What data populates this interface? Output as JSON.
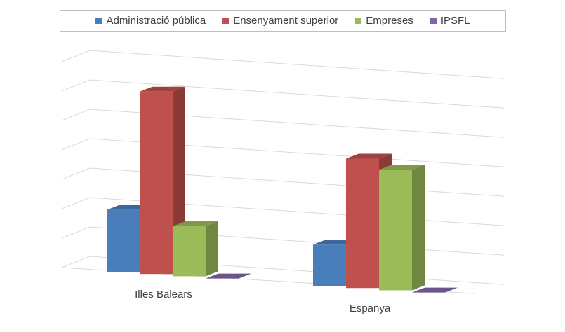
{
  "chart_data": {
    "type": "bar",
    "title": "",
    "xlabel": "",
    "ylabel": "",
    "categories": [
      "Illes Balears",
      "Espanya"
    ],
    "series": [
      {
        "name": "Administració pública",
        "values": [
          2.1,
          1.4
        ],
        "color": "#4a7ebb"
      },
      {
        "name": "Ensenyament superior",
        "values": [
          6.2,
          4.4
        ],
        "color": "#c0504d"
      },
      {
        "name": "Empreses",
        "values": [
          1.7,
          4.1
        ],
        "color": "#9bbb59"
      },
      {
        "name": "IPSFL",
        "values": [
          0.0,
          0.0
        ],
        "color": "#8064a2"
      }
    ],
    "ylim": [
      0,
      7
    ],
    "grid": true,
    "legend_position": "top",
    "perspective": "3d"
  }
}
